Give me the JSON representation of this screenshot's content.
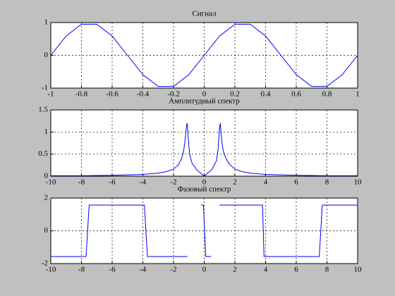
{
  "chart_data": [
    {
      "type": "line",
      "title": "Сигнал",
      "x": [
        -1,
        -0.9,
        -0.8,
        -0.7,
        -0.6,
        -0.5,
        -0.4,
        -0.3,
        -0.2,
        -0.1,
        0,
        0.1,
        0.2,
        0.3,
        0.4,
        0.5,
        0.6,
        0.7,
        0.8,
        0.9,
        1
      ],
      "series": [
        {
          "color": "#0000ff",
          "values": [
            0,
            0.59,
            0.95,
            0.95,
            0.59,
            0,
            -0.59,
            -0.95,
            -0.95,
            -0.59,
            0,
            0.59,
            0.95,
            0.95,
            0.59,
            0,
            -0.59,
            -0.95,
            -0.95,
            -0.59,
            0
          ]
        }
      ],
      "xlim": [
        -1,
        1
      ],
      "xticks": [
        -1,
        -0.8,
        -0.6,
        -0.4,
        -0.2,
        0,
        0.2,
        0.4,
        0.6,
        0.8,
        1
      ],
      "ylim": [
        -1,
        1
      ],
      "yticks": [
        -1,
        0,
        1
      ],
      "grid": true
    },
    {
      "type": "line",
      "title": "Амплитудный спектр",
      "x": [
        -10,
        -8,
        -6,
        -5,
        -4,
        -3,
        -2.5,
        -2,
        -1.7,
        -1.5,
        -1.35,
        -1.25,
        -1.15,
        -1.1,
        -1.05,
        -0.95,
        -0.8,
        -0.5,
        0,
        0.5,
        0.8,
        0.9,
        1,
        1.05,
        1.1,
        1.2,
        1.3,
        1.5,
        1.7,
        2,
        2.5,
        3,
        4,
        5,
        6,
        8,
        10
      ],
      "series": [
        {
          "color": "#0000ff",
          "values": [
            0.01,
            0.01,
            0.02,
            0.03,
            0.04,
            0.07,
            0.1,
            0.16,
            0.25,
            0.38,
            0.55,
            0.8,
            1.15,
            1.2,
            0.9,
            0.5,
            0.3,
            0.15,
            0,
            0.15,
            0.35,
            0.6,
            1.1,
            1.2,
            0.95,
            0.65,
            0.5,
            0.35,
            0.25,
            0.16,
            0.1,
            0.07,
            0.04,
            0.03,
            0.02,
            0.01,
            0.01
          ]
        }
      ],
      "xlim": [
        -10,
        10
      ],
      "xticks": [
        -10,
        -8,
        -6,
        -4,
        -2,
        0,
        2,
        4,
        6,
        8,
        10
      ],
      "ylim": [
        0,
        1.5
      ],
      "yticks": [
        0,
        0.5,
        1,
        1.5
      ],
      "grid": true
    },
    {
      "type": "line",
      "title": "Фазовый спектр",
      "x": [
        -10,
        -7.7,
        -7.5,
        -3.9,
        -3.7,
        -1.1,
        -0.7,
        -0.2,
        -0.05,
        0.1,
        0.45,
        0.7,
        1,
        3.8,
        3.9,
        7.5,
        7.7,
        10
      ],
      "series": [
        {
          "color": "#0000ff",
          "values": [
            -1.57,
            -1.57,
            1.57,
            1.57,
            -1.57,
            -1.57,
            null,
            1.57,
            1.57,
            -1.57,
            -1.57,
            null,
            1.57,
            1.57,
            -1.57,
            -1.57,
            1.57,
            1.57
          ]
        }
      ],
      "xlim": [
        -10,
        10
      ],
      "xticks": [
        -10,
        -8,
        -6,
        -4,
        -2,
        0,
        2,
        4,
        6,
        8,
        10
      ],
      "ylim": [
        -2,
        2
      ],
      "yticks": [
        -2,
        0,
        2
      ],
      "grid": true
    }
  ]
}
